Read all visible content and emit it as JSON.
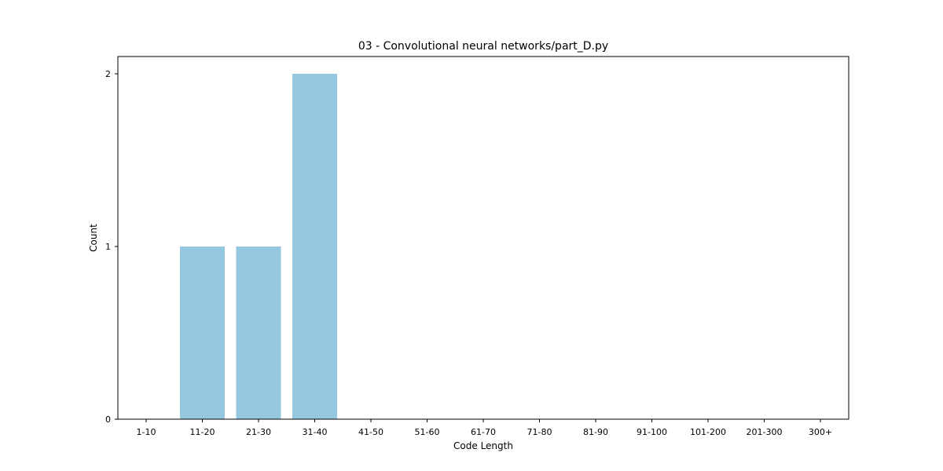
{
  "chart_data": {
    "type": "bar",
    "title": "03 - Convolutional neural networks/part_D.py",
    "xlabel": "Code Length",
    "ylabel": "Count",
    "categories": [
      "1-10",
      "11-20",
      "21-30",
      "31-40",
      "41-50",
      "51-60",
      "61-70",
      "71-80",
      "81-90",
      "91-100",
      "101-200",
      "201-300",
      "300+"
    ],
    "values": [
      0,
      1,
      1,
      2,
      0,
      0,
      0,
      0,
      0,
      0,
      0,
      0,
      0
    ],
    "ylim": [
      0,
      2.1
    ],
    "yticks": [
      0,
      1,
      2
    ],
    "grid": false,
    "bar_color": "#95c8de"
  }
}
